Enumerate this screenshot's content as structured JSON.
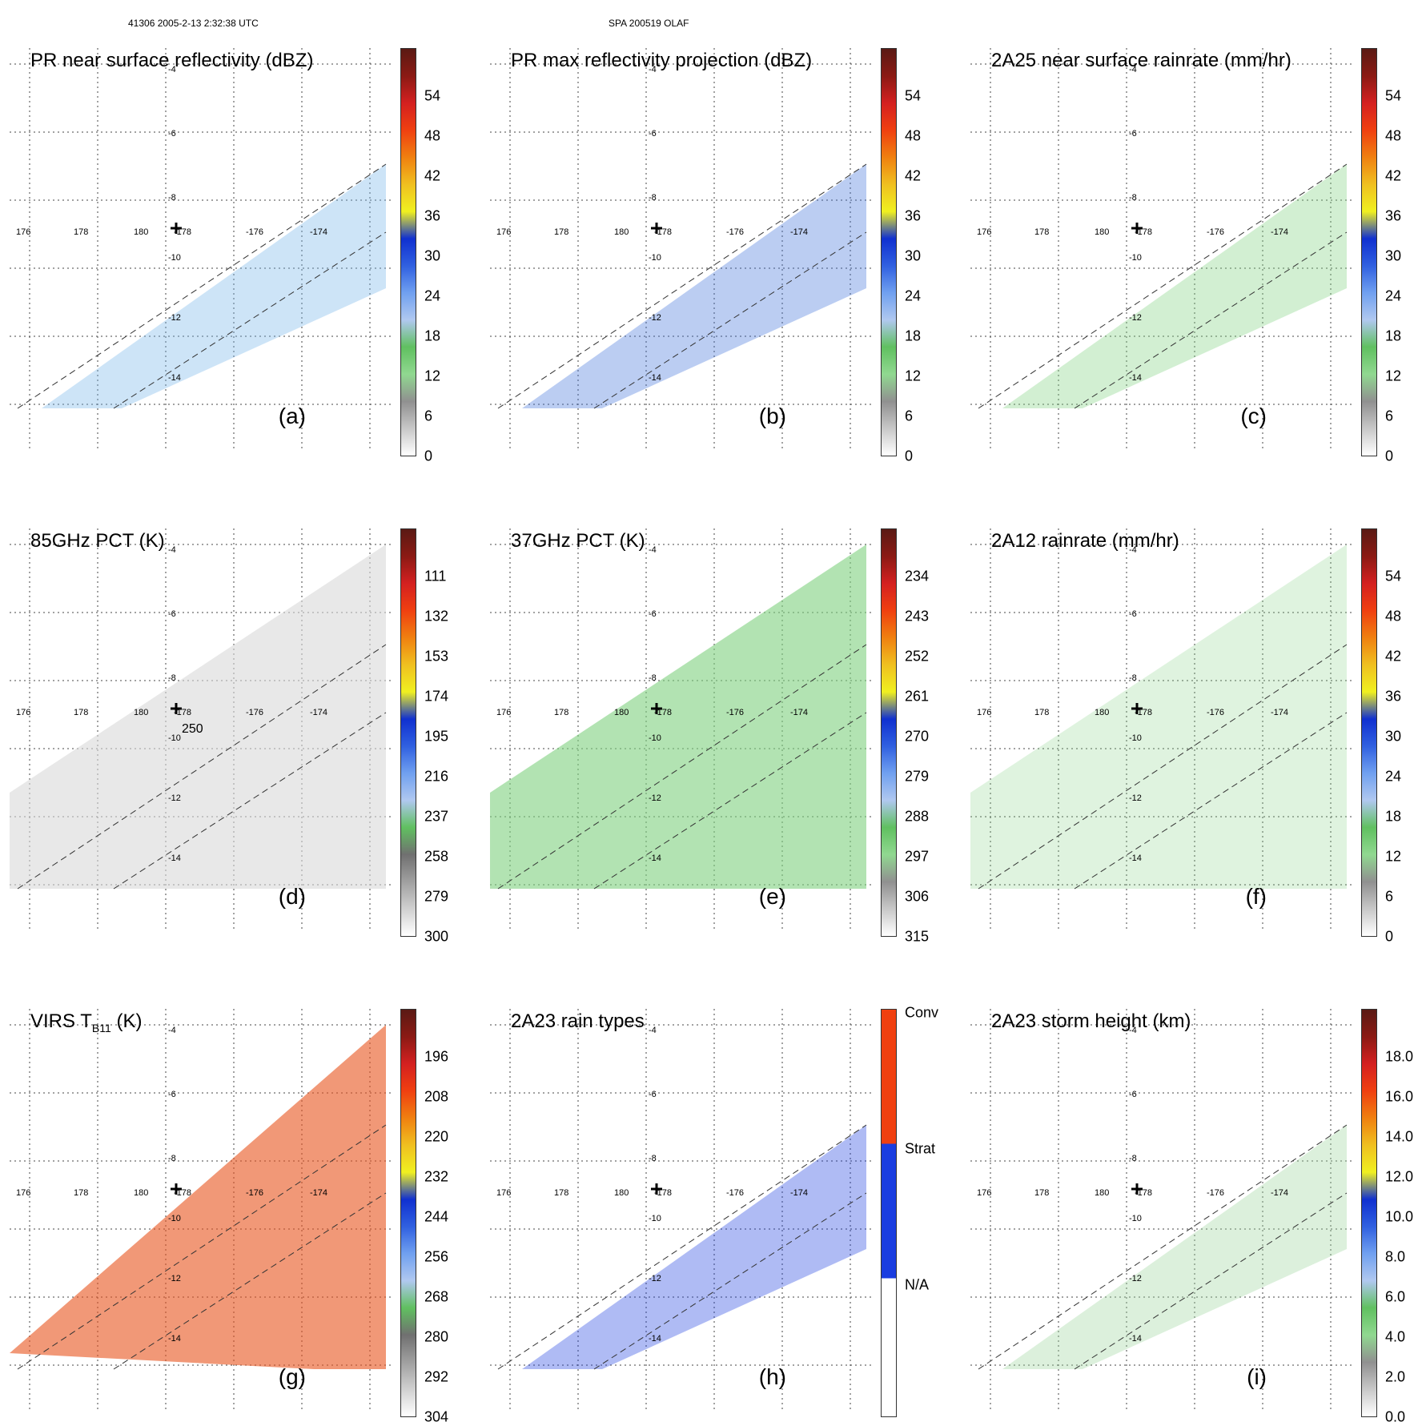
{
  "header": {
    "orbit_info": "41306 2005-2-13 2:32:38 UTC",
    "storm_info": "SPA 200519 OLAF"
  },
  "lon_labels": [
    "176",
    "178",
    "180",
    "-178",
    "-176",
    "-174"
  ],
  "lat_labels": [
    "-4",
    "-6",
    "-8",
    "-10",
    "-12",
    "-14"
  ],
  "panels": [
    {
      "id": "a",
      "title": "PR near surface reflectivity (dBZ)",
      "label": "(a)",
      "kind": "swath",
      "fill": "#6fb3e8",
      "ticks": [
        "54",
        "48",
        "42",
        "36",
        "30",
        "24",
        "18",
        "12",
        "6",
        "0"
      ]
    },
    {
      "id": "b",
      "title": "PR max reflectivity projection (dBZ)",
      "label": "(b)",
      "kind": "swath",
      "fill": "#3b6fd9",
      "ticks": [
        "54",
        "48",
        "42",
        "36",
        "30",
        "24",
        "18",
        "12",
        "6",
        "0"
      ]
    },
    {
      "id": "c",
      "title": "2A25 near surface rainrate (mm/hr)",
      "label": "(c)",
      "kind": "swath",
      "fill": "#7fd07f",
      "ticks": [
        "54",
        "48",
        "42",
        "36",
        "30",
        "24",
        "18",
        "12",
        "6",
        "0"
      ]
    },
    {
      "id": "d",
      "title": "85GHz PCT (K)",
      "label": "(d)",
      "kind": "tmi",
      "fill": "#d8d8d8",
      "ticks": [
        "111",
        "132",
        "153",
        "174",
        "195",
        "216",
        "237",
        "258",
        "279",
        "300"
      ],
      "annotation": "250"
    },
    {
      "id": "e",
      "title": "37GHz PCT (K)",
      "label": "(e)",
      "kind": "tmi",
      "fill": "#7fd07f",
      "ticks": [
        "234",
        "243",
        "252",
        "261",
        "270",
        "279",
        "288",
        "297",
        "306",
        "315"
      ]
    },
    {
      "id": "f",
      "title": "2A12 rainrate (mm/hr)",
      "label": "(f)",
      "kind": "tmi",
      "fill": "#7fd07f",
      "ticks": [
        "54",
        "48",
        "42",
        "36",
        "30",
        "24",
        "18",
        "12",
        "6",
        "0"
      ]
    },
    {
      "id": "g",
      "title_main": "VIRS T",
      "title_sub": "B11",
      "title_end": " (K)",
      "label": "(g)",
      "kind": "virs",
      "fill": "#e8541c",
      "ticks": [
        "196",
        "208",
        "220",
        "232",
        "244",
        "256",
        "268",
        "280",
        "292",
        "304"
      ]
    },
    {
      "id": "h",
      "title": "2A23 rain types",
      "label": "(h)",
      "kind": "swath",
      "fill": "#1a3de0",
      "ticks": [
        "Conv",
        "Strat",
        "N/A"
      ]
    },
    {
      "id": "i",
      "title": "2A23 storm height (km)",
      "label": "(i)",
      "kind": "swath",
      "fill": "#9ad49a",
      "ticks": [
        "18.0",
        "16.0",
        "14.0",
        "12.0",
        "10.0",
        "8.0",
        "6.0",
        "4.0",
        "2.0",
        "0.0"
      ]
    }
  ],
  "colors": {
    "dbz_scale": [
      "#5a1a14",
      "#8b1a14",
      "#d42020",
      "#f04010",
      "#f08010",
      "#f0c020",
      "#f0f020",
      "#1030d0",
      "#3060e0",
      "#70a0f0",
      "#b0c8f0",
      "#60c060",
      "#90d890",
      "#909090",
      "#c8c8c8",
      "#ffffff"
    ],
    "rain_type_scale": [
      "#f04010",
      "#1a3de0",
      "#ffffff"
    ]
  }
}
